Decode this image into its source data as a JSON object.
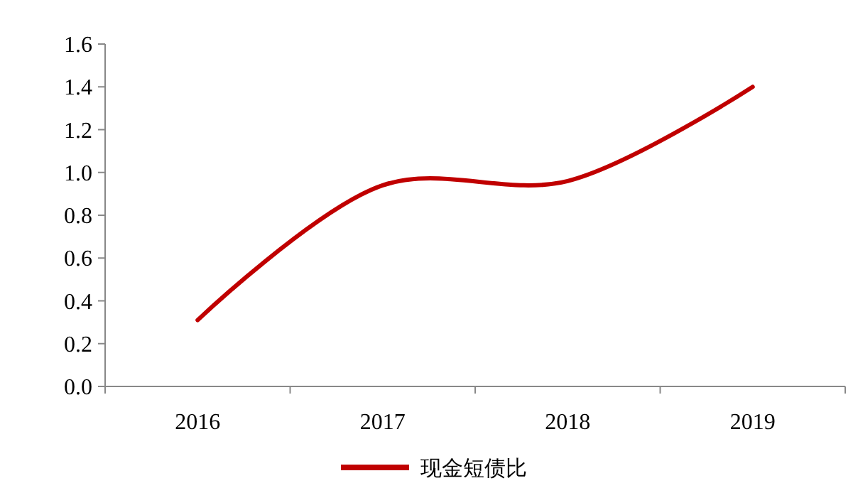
{
  "chart_data": {
    "type": "line",
    "categories": [
      "2016",
      "2017",
      "2018",
      "2019"
    ],
    "series": [
      {
        "name": "现金短债比",
        "color": "#c00000",
        "values": [
          0.31,
          0.94,
          0.96,
          1.4
        ]
      }
    ],
    "ylim": [
      0,
      1.6
    ],
    "yticks": [
      {
        "value": 0,
        "label": "0.0"
      },
      {
        "value": 0.2,
        "label": "0.2"
      },
      {
        "value": 0.4,
        "label": "0.4"
      },
      {
        "value": 0.6,
        "label": "0.6"
      },
      {
        "value": 0.8,
        "label": "0.8"
      },
      {
        "value": 1,
        "label": "1.0"
      },
      {
        "value": 1.2,
        "label": "1.2"
      },
      {
        "value": 1.4,
        "label": "1.4"
      },
      {
        "value": 1.6,
        "label": "1.6"
      }
    ],
    "grid": false,
    "legend": "bottom",
    "marker": "none",
    "line_style": "solid"
  }
}
